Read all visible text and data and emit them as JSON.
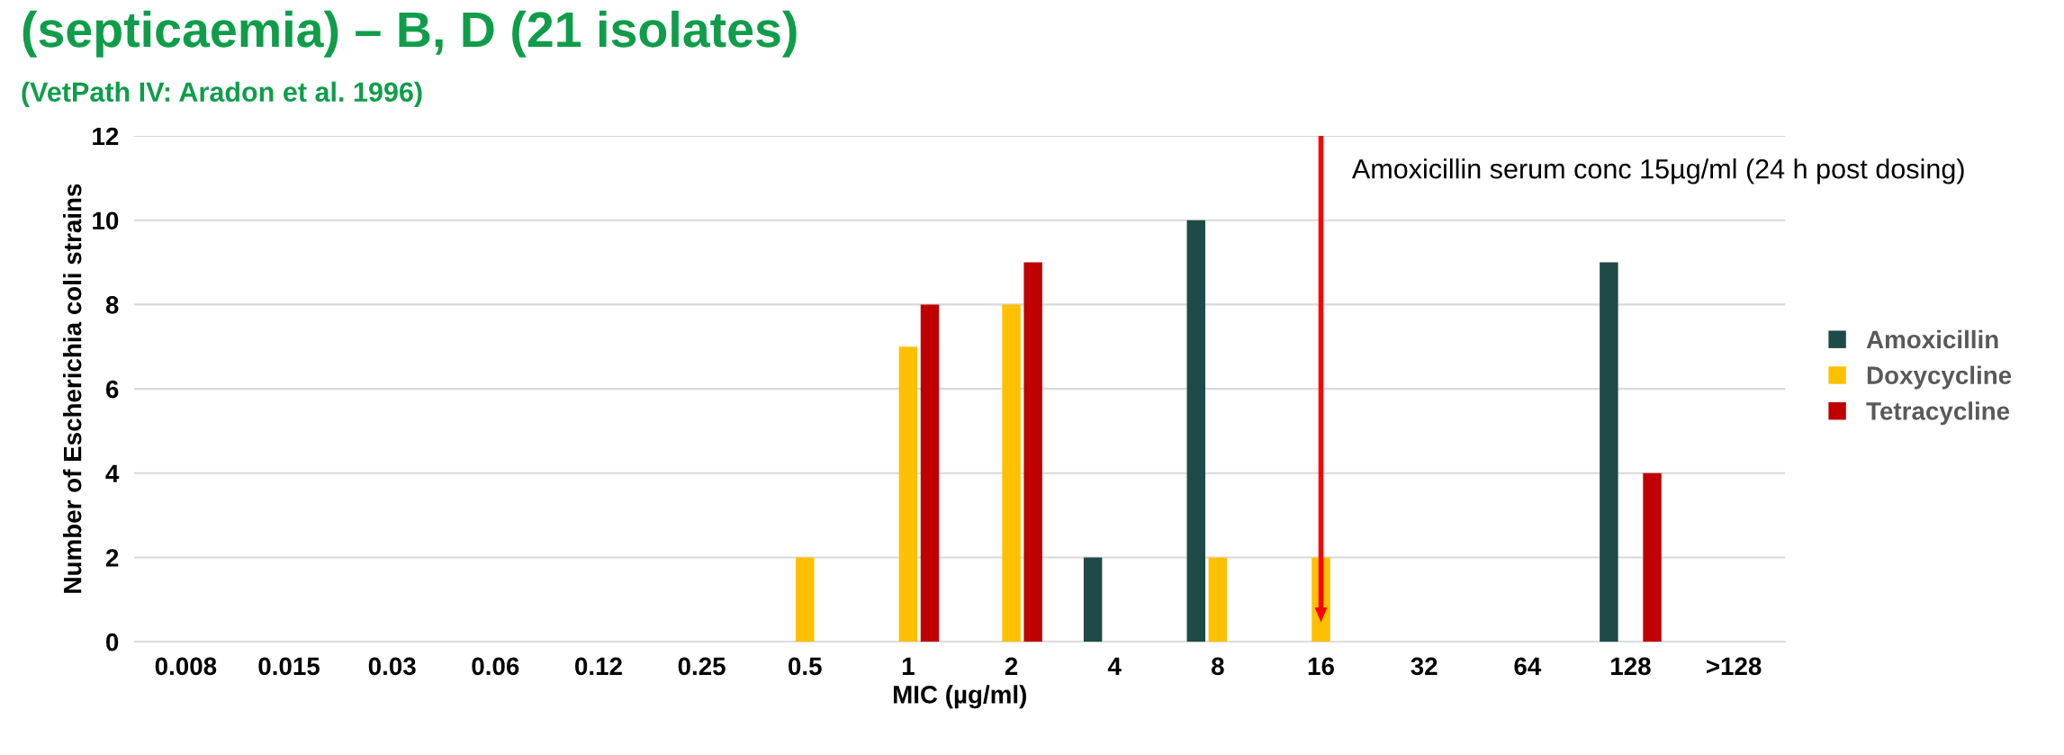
{
  "chart_data": {
    "type": "bar",
    "title": "(septicaemia) – B, D (21 isolates)",
    "subtitle": "(VetPath IV: Aradon et al. 1996)",
    "xlabel": "MIC (µg/ml)",
    "ylabel": "Number of Escherichia coli strains",
    "categories": [
      "0.008",
      "0.015",
      "0.03",
      "0.06",
      "0.12",
      "0.25",
      "0.5",
      "1",
      "2",
      "4",
      "8",
      "16",
      "32",
      "64",
      "128",
      ">128"
    ],
    "series": [
      {
        "name": "Amoxicillin",
        "color": "#1e4a47",
        "values": [
          0,
          0,
          0,
          0,
          0,
          0,
          0,
          0,
          0,
          2,
          10,
          0,
          0,
          0,
          9,
          0
        ]
      },
      {
        "name": "Doxycycline",
        "color": "#ffc000",
        "values": [
          0,
          0,
          0,
          0,
          0,
          0,
          2,
          7,
          8,
          0,
          2,
          2,
          0,
          0,
          0,
          0
        ]
      },
      {
        "name": "Tetracycline",
        "color": "#c00000",
        "values": [
          0,
          0,
          0,
          0,
          0,
          0,
          0,
          8,
          9,
          0,
          0,
          0,
          0,
          0,
          4,
          0
        ]
      }
    ],
    "ylim": [
      0,
      12
    ],
    "yticks": [
      0,
      2,
      4,
      6,
      8,
      10,
      12
    ],
    "ref_lines": [
      {
        "axis": "x",
        "value": "16",
        "label": "Amoxicillin serum conc 15µg/ml (24 h post dosing)",
        "color": "#ff0000"
      }
    ],
    "grid": "y",
    "legend": "right"
  }
}
